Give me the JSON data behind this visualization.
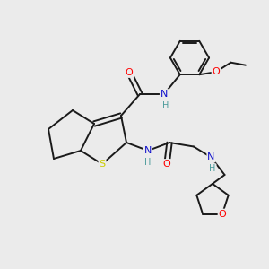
{
  "background_color": "#ebebeb",
  "bond_color": "#1a1a1a",
  "atom_colors": {
    "O": "#ff0000",
    "N": "#1010cc",
    "S": "#cccc00",
    "H": "#4a9a9a",
    "C": "#1a1a1a"
  },
  "figsize": [
    3.0,
    3.0
  ],
  "dpi": 100
}
